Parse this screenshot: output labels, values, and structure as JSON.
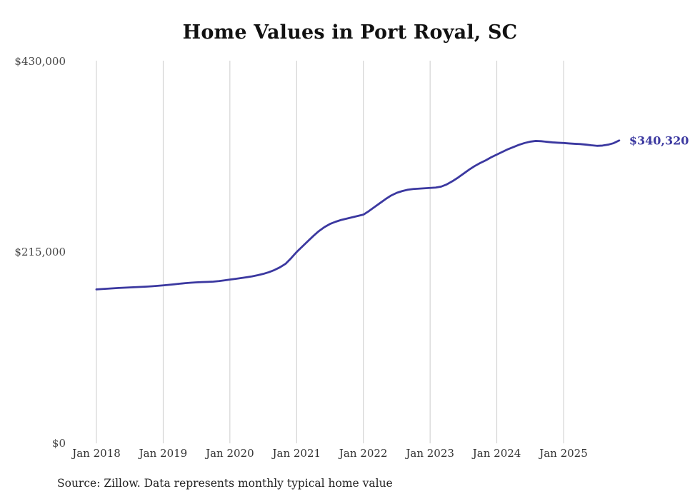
{
  "chart_data": {
    "type": "line",
    "title": "Home Values in Port Royal, SC",
    "source": "Source: Zillow. Data represents monthly typical home value",
    "line_color": "#3b38a0",
    "grid_color": "#cccccc",
    "grid": "vertical-only",
    "legend": "none",
    "ylim": [
      0,
      430000
    ],
    "y_tick_labels": [
      "$430,000",
      "$215,000",
      "$0"
    ],
    "y_tick_values": [
      430000,
      215000,
      0
    ],
    "x_tick_labels": [
      "Jan 2018",
      "Jan 2019",
      "Jan 2020",
      "Jan 2021",
      "Jan 2022",
      "Jan 2023",
      "Jan 2024",
      "Jan 2025"
    ],
    "x_start_month": "2018-01",
    "x_months_per_tick": 12,
    "end_label": "$340,320",
    "end_value": 340320,
    "values": [
      173000,
      173400,
      173800,
      174200,
      174600,
      174900,
      175200,
      175500,
      175800,
      176100,
      176500,
      177000,
      177500,
      178100,
      178700,
      179400,
      180000,
      180500,
      180900,
      181200,
      181400,
      181700,
      182300,
      183100,
      184000,
      184800,
      185700,
      186600,
      187600,
      188900,
      190400,
      192300,
      194700,
      197800,
      201700,
      208000,
      215000,
      221000,
      227000,
      233000,
      238500,
      243000,
      246500,
      249000,
      251000,
      252500,
      254000,
      255500,
      257000,
      261000,
      265500,
      270000,
      274500,
      278500,
      281500,
      283500,
      285000,
      285800,
      286200,
      286600,
      287000,
      287400,
      288500,
      291000,
      294500,
      298500,
      303000,
      307500,
      311500,
      315000,
      318000,
      321500,
      324500,
      327500,
      330500,
      333000,
      335500,
      337500,
      339000,
      339800,
      339500,
      338800,
      338200,
      337800,
      337500,
      337000,
      336600,
      336300,
      335700,
      334900,
      334300,
      334600,
      335600,
      337300,
      340320
    ]
  }
}
